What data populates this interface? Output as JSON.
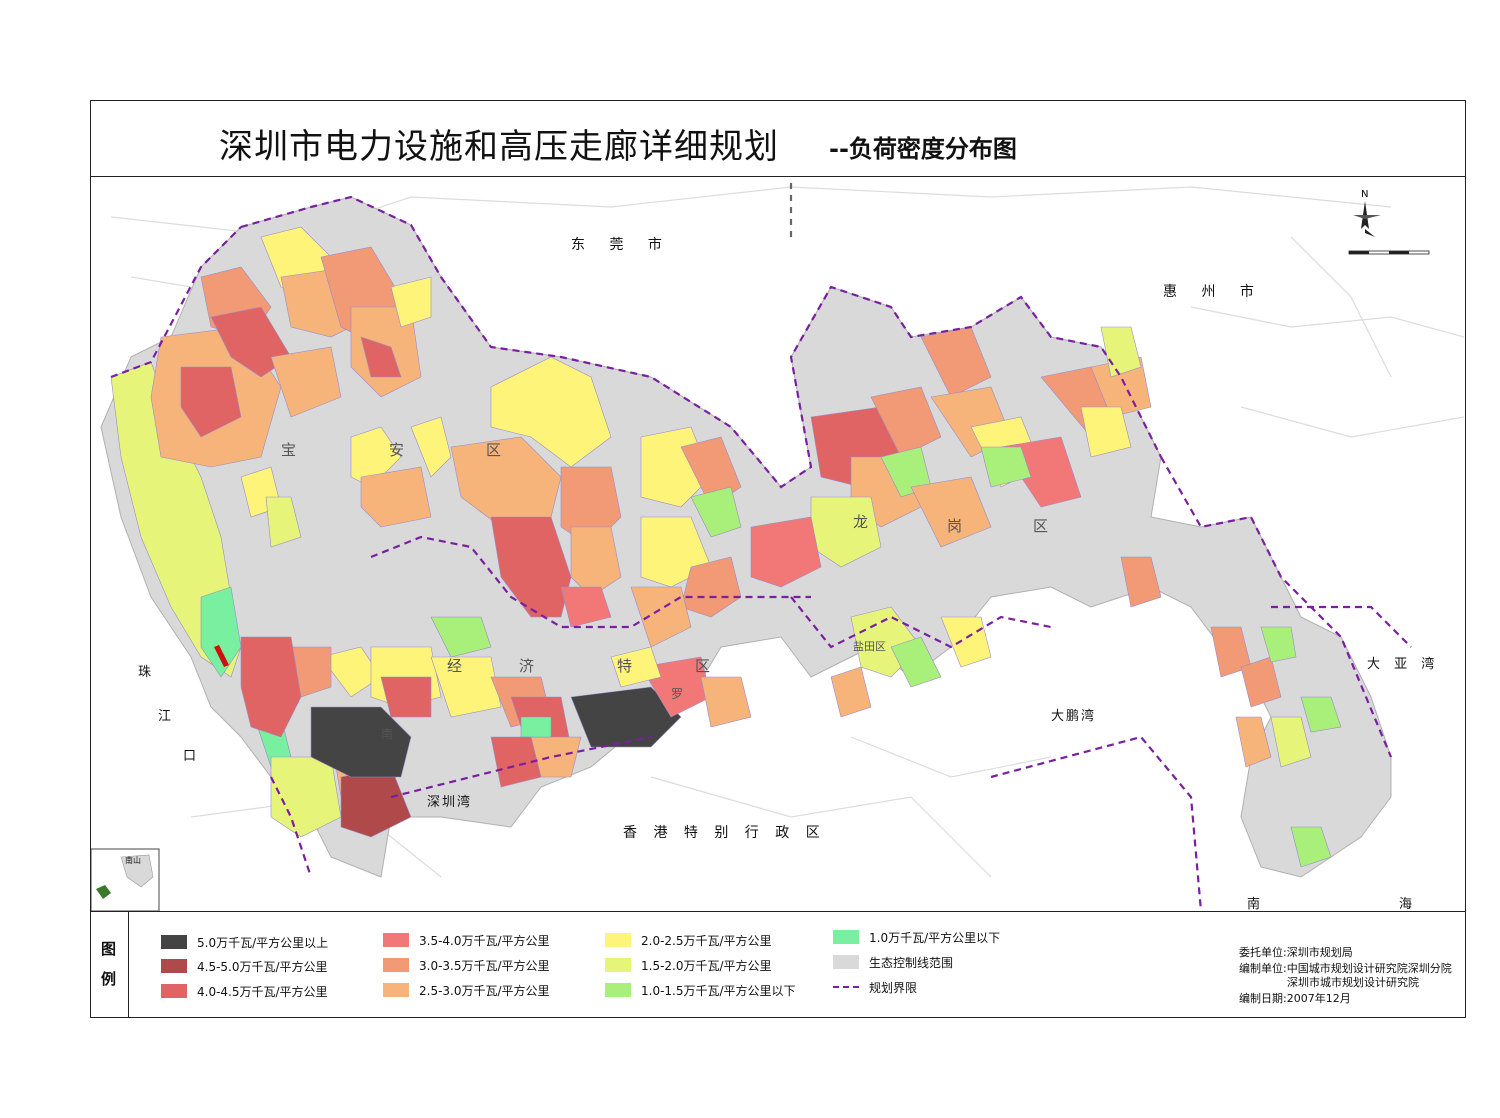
{
  "title": {
    "main": "深圳市电力设施和高压走廊详细规划",
    "sub": "--负荷密度分布图"
  },
  "map": {
    "places": {
      "dongguan": "东 莞 市",
      "huizhou": "惠 州 市",
      "hongkong": "香 港 特 别 行 政 区",
      "shenzhen_bay": "深圳湾",
      "dapeng_bay": "大鹏湾",
      "daya_bay": "大 亚 湾",
      "pearl_zhu": "珠",
      "pearl_jiang": "江",
      "pearl_kou": "口",
      "south_nan": "南",
      "south_hai": "海"
    },
    "districts": {
      "baoan_1": "宝",
      "baoan_2": "安",
      "baoan_3": "区",
      "longgang_1": "龙",
      "longgang_2": "岗",
      "longgang_3": "区",
      "sez_1": "经",
      "sez_2": "济",
      "sez_3": "特",
      "sez_4": "区",
      "nanshan": "南",
      "luohu": "罗",
      "yantian": "盐田区"
    },
    "north_label": "N",
    "inset_label": "南山"
  },
  "legend": {
    "label_1": "图",
    "label_2": "例",
    "items": [
      {
        "text": "5.0万千瓦/平方公里以上",
        "color": "#444444"
      },
      {
        "text": "4.5-5.0万千瓦/平方公里",
        "color": "#b04a4a"
      },
      {
        "text": "4.0-4.5万千瓦/平方公里",
        "color": "#e06464"
      },
      {
        "text": "3.5-4.0万千瓦/平方公里",
        "color": "#f27878"
      },
      {
        "text": "3.0-3.5万千瓦/平方公里",
        "color": "#f29a76"
      },
      {
        "text": "2.5-3.0万千瓦/平方公里",
        "color": "#f6b47a"
      },
      {
        "text": "2.0-2.5万千瓦/平方公里",
        "color": "#fff47a"
      },
      {
        "text": "1.5-2.0万千瓦/平方公里",
        "color": "#e6f57a"
      },
      {
        "text": "1.0-1.5万千瓦/平方公里以下",
        "color": "#a8f07a"
      },
      {
        "text": "1.0万千瓦/平方公里以下",
        "color": "#78f0a0"
      },
      {
        "text": "生态控制线范围",
        "color": "#d9d9d9"
      },
      {
        "text": "规划界限",
        "color": "#7a1fa0"
      }
    ]
  },
  "credits": {
    "client": "委托单位:深圳市规划局",
    "compiler_1": "编制单位:中国城市规划设计研究院深圳分院",
    "compiler_2": "深圳市城市规划设计研究院",
    "date": "编制日期:2007年12月"
  }
}
